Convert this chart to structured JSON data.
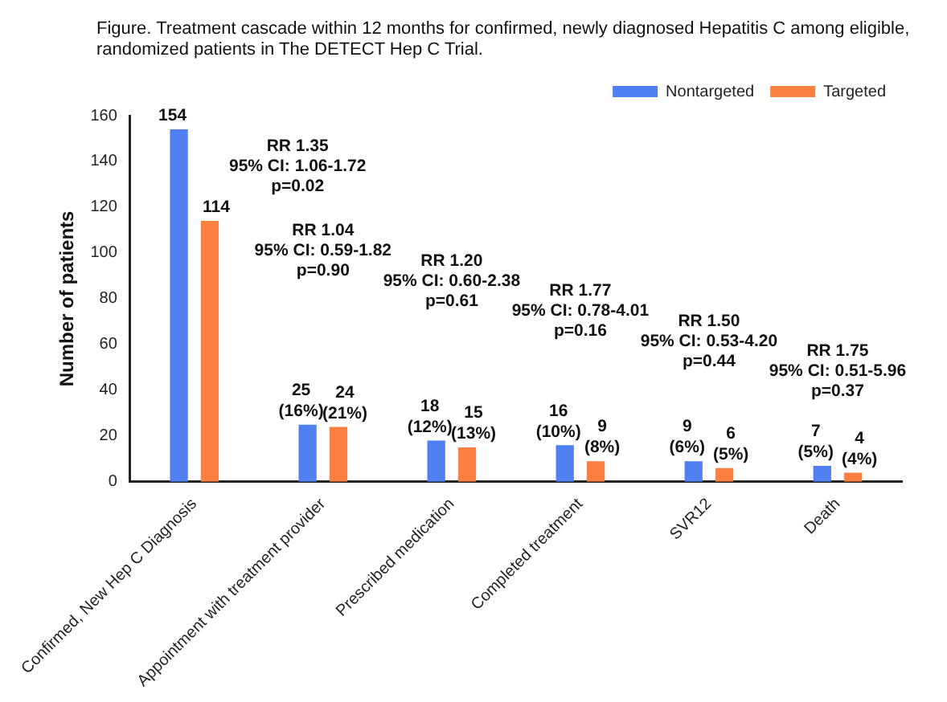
{
  "chart_data": {
    "type": "bar",
    "title": "Figure. Treatment cascade within 12 months for confirmed, newly diagnosed Hepatitis C among eligible, randomized patients in The DETECT Hep C Trial.",
    "ylabel": "Number of patients",
    "categories": [
      "Confirmed, New Hep C Diagnosis",
      "Appointment with treatment provider",
      "Prescribed medication",
      "Completed treatment",
      "SVR12",
      "Death"
    ],
    "series": [
      {
        "name": "Nontargeted",
        "color": "#4f7ff0",
        "values": [
          154,
          25,
          18,
          16,
          9,
          7
        ],
        "value_labels": [
          "154",
          "25 (16%)",
          "18 (12%)",
          "16 (10%)",
          "9 (6%)",
          "7 (5%)"
        ]
      },
      {
        "name": "Targeted",
        "color": "#f98040",
        "values": [
          114,
          24,
          15,
          9,
          6,
          4
        ],
        "value_labels": [
          "114",
          "24 (21%)",
          "15 (13%)",
          "9 (8%)",
          "6 (5%)",
          "4 (4%)"
        ]
      }
    ],
    "ylim": [
      0,
      160
    ],
    "yticks": [
      0,
      20,
      40,
      60,
      80,
      100,
      120,
      140,
      160
    ],
    "grid": false,
    "legend": "top right",
    "annotations": [
      "RR 1.35\n95% CI: 1.06-1.72\np=0.02",
      "RR 1.04\n95% CI: 0.59-1.82\np=0.90",
      "RR 1.20\n95% CI: 0.60-2.38\np=0.61",
      "RR 1.77\n95% CI: 0.78-4.01\np=0.16",
      "RR 1.50\n95% CI: 0.53-4.20\np=0.44",
      "RR 1.75\n95% CI: 0.51-5.96\np=0.37"
    ]
  }
}
